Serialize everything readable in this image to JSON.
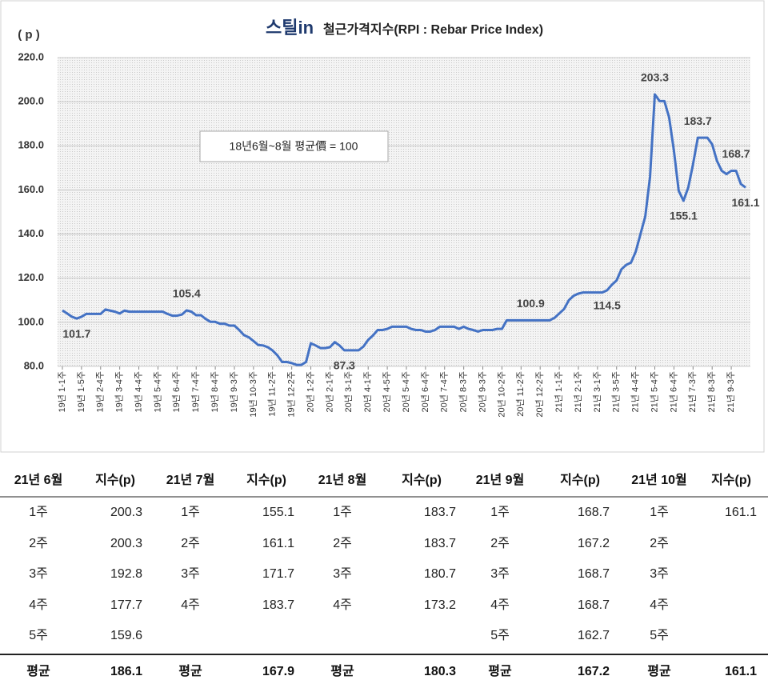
{
  "chart_data": {
    "type": "line",
    "logo": "스틸in",
    "title": "철근가격지수(RPI : Rebar Price Index)",
    "y_label": "( p )",
    "annotation": "18년6월~8월 평균價 = 100",
    "color": "#4472c4",
    "grid": true,
    "ylim": [
      80,
      220
    ],
    "yticks": [
      {
        "value": 80,
        "label": "80.0"
      },
      {
        "value": 100,
        "label": "100.0"
      },
      {
        "value": 120,
        "label": "120.0"
      },
      {
        "value": 140,
        "label": "140.0"
      },
      {
        "value": 160,
        "label": "160.0"
      },
      {
        "value": 180,
        "label": "180.0"
      },
      {
        "value": 200,
        "label": "200.0"
      },
      {
        "value": 220,
        "label": "220.0"
      }
    ],
    "categories": [
      "19년 1-1주",
      null,
      null,
      null,
      "19년 1-5주",
      null,
      null,
      null,
      "19년 2-4주",
      null,
      null,
      null,
      "19년 3-4주",
      null,
      null,
      null,
      "19년 4-4주",
      null,
      null,
      null,
      "19년 5-4주",
      null,
      null,
      null,
      "19년 6-4주",
      null,
      null,
      null,
      "19년 7-4주",
      null,
      null,
      null,
      "19년 8-4주",
      null,
      null,
      null,
      "19년 9-3주",
      null,
      null,
      null,
      "19년 10-3주",
      null,
      null,
      null,
      "19년 11-2주",
      null,
      null,
      null,
      "19년 12-2주",
      null,
      null,
      null,
      "20년 1-2주",
      null,
      null,
      null,
      "20년 2-1주",
      null,
      null,
      null,
      "20년 3-1주",
      null,
      null,
      null,
      "20년 4-1주",
      null,
      null,
      null,
      "20년 4-5주",
      null,
      null,
      null,
      "20년 5-4주",
      null,
      null,
      null,
      "20년 6-4주",
      null,
      null,
      null,
      "20년 7-4주",
      null,
      null,
      null,
      "20년 8-3주",
      null,
      null,
      null,
      "20년 9-3주",
      null,
      null,
      null,
      "20년 10-2주",
      null,
      null,
      null,
      "20년 11-2주",
      null,
      null,
      null,
      "20년 12-2주",
      null,
      null,
      null,
      "21년 1-1주",
      null,
      null,
      null,
      "21년 2-1주",
      null,
      null,
      null,
      "21년 3-1주",
      null,
      null,
      null,
      "21년 3-5주",
      null,
      null,
      null,
      "21년 4-4주",
      null,
      null,
      null,
      "21년 5-4주",
      null,
      null,
      null,
      "21년 6-4주",
      null,
      null,
      null,
      "21년 7-3주",
      null,
      null,
      null,
      "21년 8-3주",
      null,
      null,
      null,
      "21년 9-3주",
      null,
      null,
      null
    ],
    "values": [
      105.4,
      104,
      102.5,
      101.7,
      102.5,
      103.8,
      103.8,
      103.8,
      103.8,
      105.8,
      105.3,
      104.8,
      104,
      105.3,
      104.8,
      104.8,
      104.8,
      104.8,
      104.8,
      104.8,
      104.8,
      104.8,
      103.8,
      103,
      103,
      103.5,
      105.4,
      104.8,
      103.2,
      103.2,
      101.5,
      100.2,
      100.2,
      99.3,
      99.3,
      98.5,
      98.5,
      96.5,
      94.2,
      93.2,
      91.5,
      89.7,
      89.5,
      88.7,
      87.2,
      85,
      82,
      82,
      81.5,
      80.7,
      80.7,
      82,
      90.5,
      89.5,
      88.3,
      88.3,
      88.7,
      91,
      89.5,
      87.3,
      87.3,
      87.3,
      87.3,
      89,
      92,
      94,
      96.5,
      96.5,
      97,
      98,
      98,
      98,
      98,
      97,
      96.5,
      96.5,
      95.8,
      95.8,
      96.5,
      98,
      98,
      98,
      98,
      97,
      98,
      97,
      96.5,
      95.8,
      96.5,
      96.5,
      96.5,
      97,
      97,
      100.9,
      100.9,
      100.9,
      100.9,
      100.9,
      100.9,
      100.9,
      100.9,
      100.9,
      100.9,
      102,
      104,
      106,
      110,
      112,
      113,
      113.5,
      113.5,
      113.5,
      113.5,
      113.5,
      114.5,
      117,
      119,
      124,
      126,
      127,
      132,
      140,
      148,
      166,
      203.3,
      200.3,
      200.3,
      192.8,
      177.7,
      159.6,
      155.1,
      161.1,
      171.7,
      183.7,
      183.7,
      183.7,
      180.7,
      173.2,
      168.7,
      167.2,
      168.7,
      168.7,
      162.7,
      161.1
    ],
    "value_labels": [
      null,
      null,
      null,
      "101.7",
      null,
      null,
      null,
      null,
      null,
      null,
      null,
      null,
      null,
      null,
      null,
      null,
      null,
      null,
      null,
      null,
      null,
      null,
      null,
      null,
      null,
      null,
      "105.4",
      null,
      null,
      null,
      null,
      null,
      null,
      null,
      null,
      null,
      null,
      null,
      null,
      null,
      null,
      null,
      null,
      null,
      null,
      null,
      null,
      null,
      null,
      null,
      null,
      null,
      null,
      null,
      null,
      null,
      null,
      null,
      null,
      "87.3",
      null,
      null,
      null,
      null,
      null,
      null,
      null,
      null,
      null,
      null,
      null,
      null,
      null,
      null,
      null,
      null,
      null,
      null,
      null,
      null,
      null,
      null,
      null,
      null,
      null,
      null,
      null,
      null,
      null,
      null,
      null,
      null,
      null,
      null,
      null,
      null,
      null,
      null,
      "100.9",
      null,
      null,
      null,
      null,
      null,
      null,
      null,
      null,
      null,
      null,
      null,
      null,
      null,
      null,
      null,
      "114.5",
      null,
      null,
      null,
      null,
      null,
      null,
      null,
      null,
      null,
      "203.3",
      null,
      null,
      null,
      null,
      null,
      "155.1",
      null,
      null,
      "183.7",
      null,
      null,
      null,
      null,
      null,
      null,
      null,
      "168.7",
      null,
      "161.1"
    ]
  },
  "table": {
    "header": [
      "21년 6월",
      "지수(p)",
      "21년 7월",
      "지수(p)",
      "21년 8월",
      "지수(p)",
      "21년 9월",
      "지수(p)",
      "21년 10월",
      "지수(p)"
    ],
    "rows": [
      [
        "1주",
        "200.3",
        "1주",
        "155.1",
        "1주",
        "183.7",
        "1주",
        "168.7",
        "1주",
        "161.1"
      ],
      [
        "2주",
        "200.3",
        "2주",
        "161.1",
        "2주",
        "183.7",
        "2주",
        "167.2",
        "2주",
        null
      ],
      [
        "3주",
        "192.8",
        "3주",
        "171.7",
        "3주",
        "180.7",
        "3주",
        "168.7",
        "3주",
        null
      ],
      [
        "4주",
        "177.7",
        "4주",
        "183.7",
        "4주",
        "173.2",
        "4주",
        "168.7",
        "4주",
        null
      ],
      [
        "5주",
        "159.6",
        null,
        null,
        null,
        null,
        "5주",
        "162.7",
        "5주",
        null
      ]
    ],
    "footer": [
      "평균",
      "186.1",
      "평균",
      "167.9",
      "평균",
      "180.3",
      "평균",
      "167.2",
      "평균",
      "161.1"
    ]
  }
}
